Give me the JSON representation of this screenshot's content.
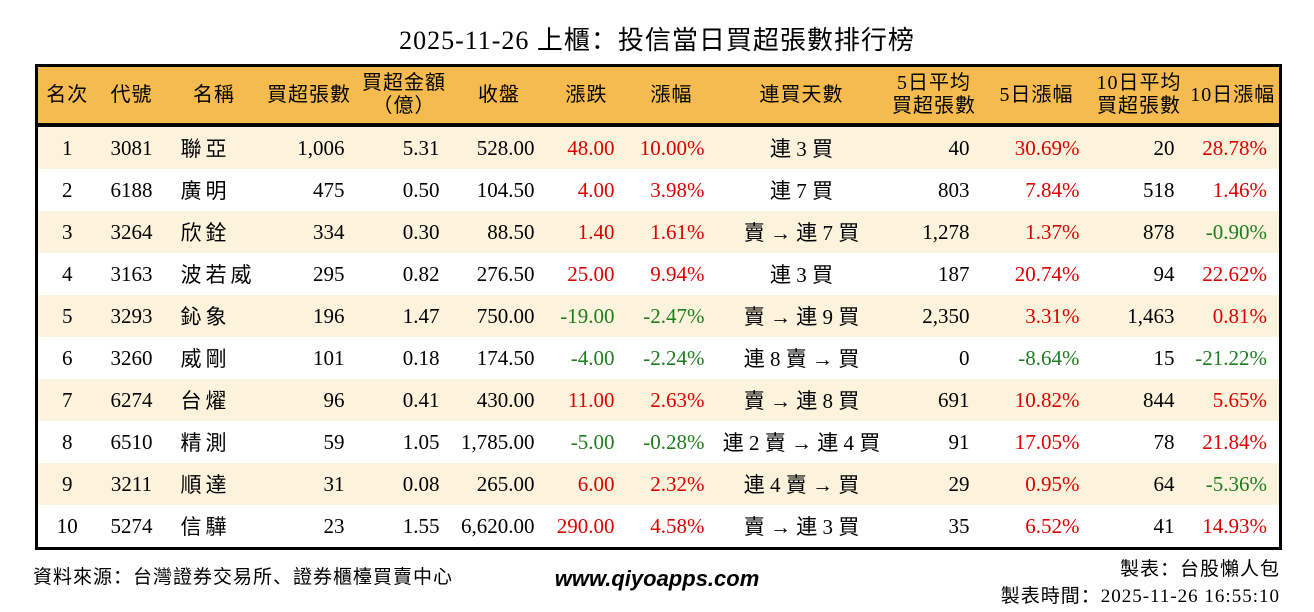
{
  "title": "2025-11-26 上櫃：投信當日買超張數排行榜",
  "colors": {
    "header_bg": "#f6bb4f",
    "row_alt_bg": "#fcf3dc",
    "up_red": "#dd0000",
    "down_green": "#1e7d1e",
    "border": "#000000"
  },
  "table": {
    "headers": [
      "名次",
      "代號",
      "名稱",
      "買超張數",
      "買超金額\n（億）",
      "收盤",
      "漲跌",
      "漲幅",
      "連買天數",
      "5日平均\n買超張數",
      "5日漲幅",
      "10日平均\n買超張數",
      "10日漲幅"
    ],
    "column_keys": [
      "rank",
      "code",
      "name",
      "buy-volume",
      "buy-amount",
      "close",
      "change",
      "change-pct",
      "streak",
      "avg5-volume",
      "pct5",
      "avg10-volume",
      "pct10"
    ],
    "colored_columns": [
      6,
      7,
      10,
      12
    ],
    "rows": [
      [
        "1",
        "3081",
        "聯亞",
        "1,006",
        "5.31",
        "528.00",
        "48.00",
        "10.00%",
        "連 3 買",
        "40",
        "30.69%",
        "20",
        "28.78%"
      ],
      [
        "2",
        "6188",
        "廣明",
        "475",
        "0.50",
        "104.50",
        "4.00",
        "3.98%",
        "連 7 買",
        "803",
        "7.84%",
        "518",
        "1.46%"
      ],
      [
        "3",
        "3264",
        "欣銓",
        "334",
        "0.30",
        "88.50",
        "1.40",
        "1.61%",
        "賣 → 連 7 買",
        "1,278",
        "1.37%",
        "878",
        "-0.90%"
      ],
      [
        "4",
        "3163",
        "波若威",
        "295",
        "0.82",
        "276.50",
        "25.00",
        "9.94%",
        "連 3 買",
        "187",
        "20.74%",
        "94",
        "22.62%"
      ],
      [
        "5",
        "3293",
        "鈊象",
        "196",
        "1.47",
        "750.00",
        "-19.00",
        "-2.47%",
        "賣 → 連 9 買",
        "2,350",
        "3.31%",
        "1,463",
        "0.81%"
      ],
      [
        "6",
        "3260",
        "威剛",
        "101",
        "0.18",
        "174.50",
        "-4.00",
        "-2.24%",
        "連 8 賣 → 買",
        "0",
        "-8.64%",
        "15",
        "-21.22%"
      ],
      [
        "7",
        "6274",
        "台燿",
        "96",
        "0.41",
        "430.00",
        "11.00",
        "2.63%",
        "賣 → 連 8 買",
        "691",
        "10.82%",
        "844",
        "5.65%"
      ],
      [
        "8",
        "6510",
        "精測",
        "59",
        "1.05",
        "1,785.00",
        "-5.00",
        "-0.28%",
        "連 2 賣 → 連 4 買",
        "91",
        "17.05%",
        "78",
        "21.84%"
      ],
      [
        "9",
        "3211",
        "順達",
        "31",
        "0.08",
        "265.00",
        "6.00",
        "2.32%",
        "連 4 賣 → 買",
        "29",
        "0.95%",
        "64",
        "-5.36%"
      ],
      [
        "10",
        "5274",
        "信驊",
        "23",
        "1.55",
        "6,620.00",
        "290.00",
        "4.58%",
        "賣 → 連 3 買",
        "35",
        "6.52%",
        "41",
        "14.93%"
      ]
    ]
  },
  "footer": {
    "source": "資料來源：台灣證券交易所、證券櫃檯買賣中心",
    "website": "www.qiyoapps.com",
    "maker": "製表：台股懶人包",
    "made_time": "製表時間：2025-11-26 16:55:10"
  }
}
